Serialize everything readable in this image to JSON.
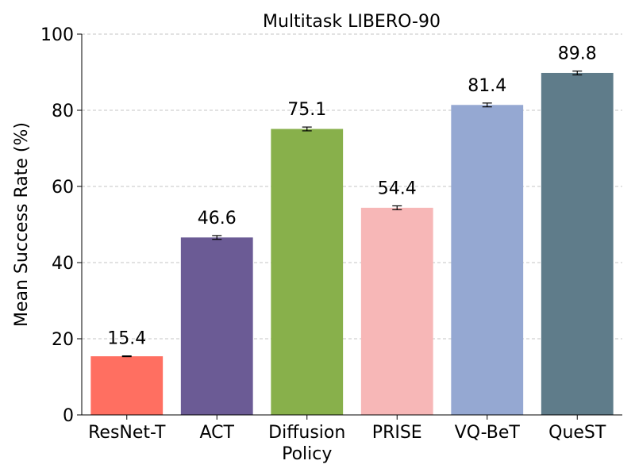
{
  "chart_data": {
    "type": "bar",
    "title": "Multitask LIBERO-90",
    "xlabel": "",
    "ylabel": "Mean Success Rate (%)",
    "ylim": [
      0,
      100
    ],
    "yticks": [
      0,
      20,
      40,
      60,
      80,
      100
    ],
    "grid": "horizontal dashed",
    "categories": [
      [
        "ResNet-T"
      ],
      [
        "ACT"
      ],
      [
        "Diffusion",
        "Policy"
      ],
      [
        "PRISE"
      ],
      [
        "VQ-BeT"
      ],
      [
        "QueST"
      ]
    ],
    "values": [
      15.4,
      46.6,
      75.1,
      54.4,
      81.4,
      89.8
    ],
    "value_labels": [
      "15.4",
      "46.6",
      "75.1",
      "54.4",
      "81.4",
      "89.8"
    ],
    "errors": [
      0.1,
      0.5,
      0.5,
      0.5,
      0.5,
      0.5
    ],
    "colors": [
      "#ff6f61",
      "#6b5b95",
      "#88b04b",
      "#f7b7b7",
      "#95a8d2",
      "#5f7c8a"
    ]
  }
}
